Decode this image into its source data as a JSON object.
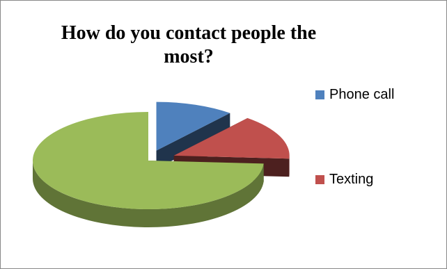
{
  "chart_data": {
    "type": "pie",
    "title": "How do you contact people the most?",
    "slices": [
      {
        "label": "Phone call",
        "value": 11,
        "color": "#4F81BD",
        "show_legend": true
      },
      {
        "label": "Texting",
        "value": 15,
        "color": "#C0504D",
        "show_legend": true
      },
      {
        "label": "",
        "value": 74,
        "color": "#9BBB59",
        "show_legend": false
      }
    ],
    "legend": {
      "position": "right",
      "entries": [
        {
          "label": "Phone call",
          "color": "#4F81BD"
        },
        {
          "label": "Texting",
          "color": "#C0504D"
        }
      ]
    },
    "exploded": true,
    "style": "3d"
  }
}
